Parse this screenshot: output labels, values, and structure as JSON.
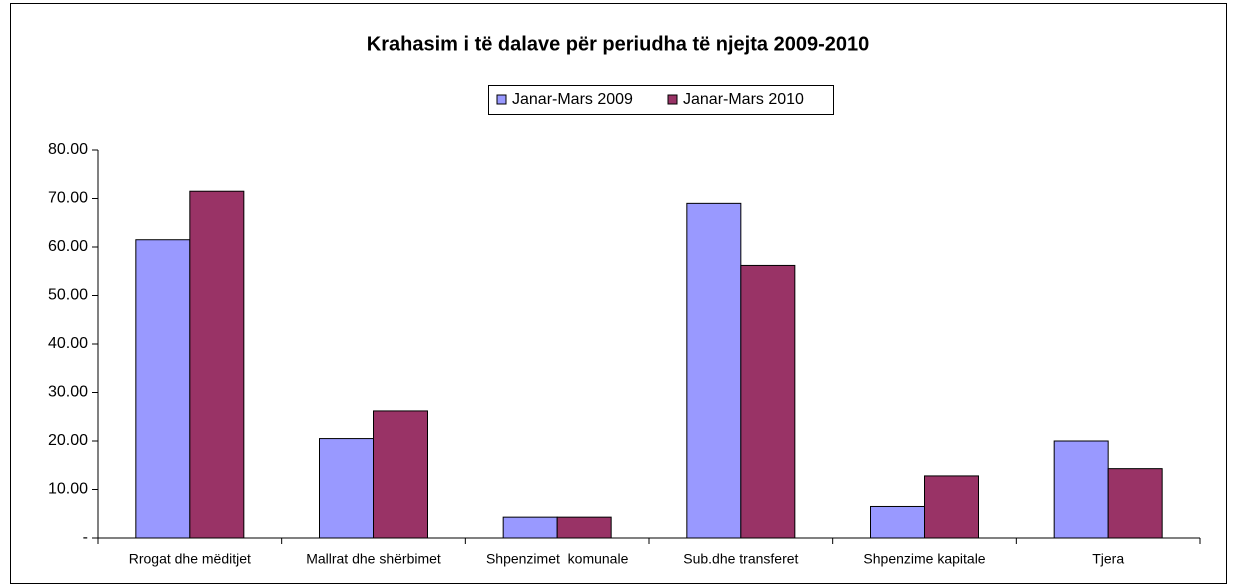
{
  "chart_data": {
    "type": "bar",
    "title": "Krahasim i të dalave për periudha të njejta 2009-2010",
    "categories": [
      "Rrogat dhe mëditjet",
      "Mallrat dhe shërbimet",
      "Shpenzimet  komunale",
      "Sub.dhe transferet",
      "Shpenzime kapitale",
      "Tjera"
    ],
    "series": [
      {
        "name": "Janar-Mars 2009",
        "color": "#9999ff",
        "values": [
          61.5,
          20.5,
          4.3,
          69.0,
          6.5,
          20.0
        ]
      },
      {
        "name": "Janar-Mars 2010",
        "color": "#993366",
        "values": [
          71.5,
          26.2,
          4.3,
          56.2,
          12.8,
          14.3
        ]
      }
    ],
    "ylim": [
      0,
      80
    ],
    "yticks": [
      {
        "value": 0,
        "label": "-"
      },
      {
        "value": 10,
        "label": "10.00"
      },
      {
        "value": 20,
        "label": "20.00"
      },
      {
        "value": 30,
        "label": "30.00"
      },
      {
        "value": 40,
        "label": "40.00"
      },
      {
        "value": 50,
        "label": "50.00"
      },
      {
        "value": 60,
        "label": "60.00"
      },
      {
        "value": 70,
        "label": "70.00"
      },
      {
        "value": 80,
        "label": "80.00"
      }
    ],
    "grid": false,
    "legend": "top"
  }
}
